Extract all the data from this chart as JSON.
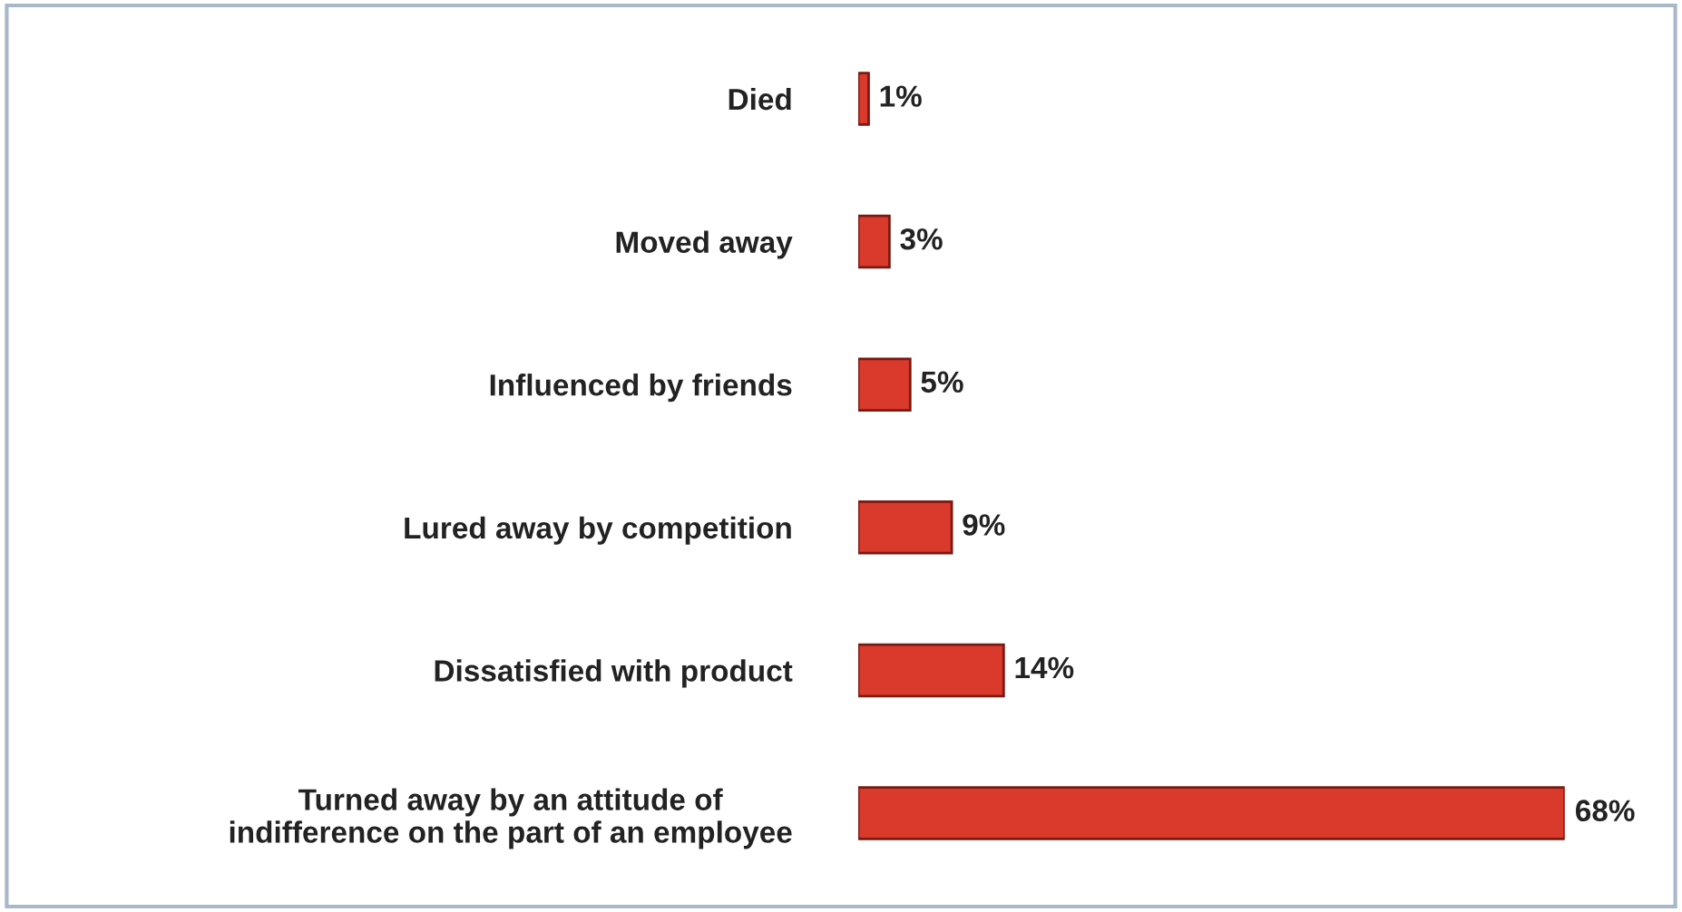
{
  "chart_data": {
    "type": "bar",
    "orientation": "horizontal",
    "categories": [
      "Died",
      "Moved away",
      "Influenced by friends",
      "Lured away by competition",
      "Dissatisfied with product",
      "Turned away by an attitude of\nindifference on the part of an employee"
    ],
    "values": [
      1,
      3,
      5,
      9,
      14,
      68
    ],
    "value_labels": [
      "1%",
      "3%",
      "5%",
      "9%",
      "14%",
      "68%"
    ],
    "color": "#d93a2b",
    "grid": false,
    "legend": false,
    "tick_labels": "y"
  }
}
